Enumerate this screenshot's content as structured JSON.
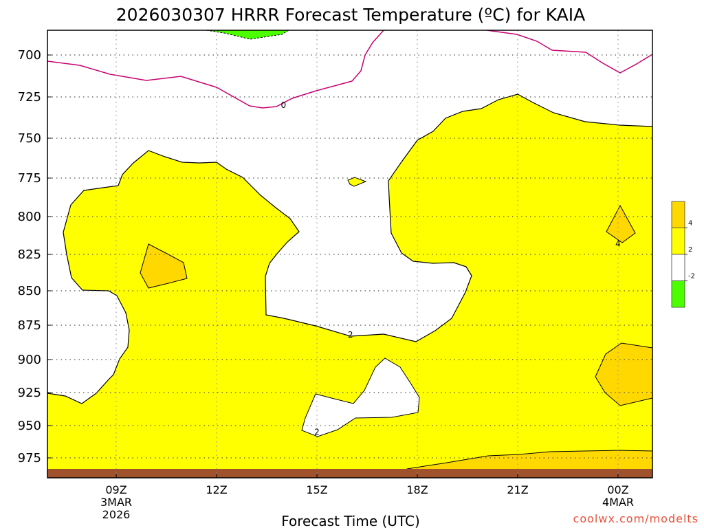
{
  "chart_data": {
    "type": "contour",
    "title": "2026030307 HRRR Forecast Temperature (ºC) for KAIA",
    "xlabel": "Forecast Time (UTC)",
    "ylabel": "",
    "y_scale": "pressure (hPa, inverted)",
    "ylim": [
      985,
      686
    ],
    "y_ticks": [
      700,
      725,
      750,
      775,
      800,
      825,
      850,
      875,
      900,
      925,
      950,
      975
    ],
    "x_ticks": [
      {
        "label": "09Z",
        "sub": [
          "3MAR",
          "2026"
        ],
        "hour": 9
      },
      {
        "label": "12Z",
        "sub": [],
        "hour": 12
      },
      {
        "label": "15Z",
        "sub": [],
        "hour": 15
      },
      {
        "label": "18Z",
        "sub": [],
        "hour": 18
      },
      {
        "label": "21Z",
        "sub": [],
        "hour": 21
      },
      {
        "label": "00Z",
        "sub": [
          "4MAR"
        ],
        "hour": 24
      }
    ],
    "xlim_hours": [
      7,
      25
    ],
    "grid": "dotted",
    "contour_labels": [
      {
        "text": "0",
        "hour": 14.0,
        "p": 730
      },
      {
        "text": "2",
        "hour": 16.0,
        "p": 882
      },
      {
        "text": "2",
        "hour": 15.0,
        "p": 955
      },
      {
        "text": "4",
        "hour": 24.0,
        "p": 818
      }
    ],
    "colorbar": {
      "levels": [
        "4",
        "2",
        "-2"
      ],
      "colors": [
        "#ffd800",
        "#ffff00",
        "#ffffff",
        "#4cff00"
      ]
    },
    "colors": {
      "warm_4_plus": "#ffd800",
      "warm_2_4": "#ffff00",
      "cold_below_minus2": "#4cff00",
      "zero_line": "#c8006e",
      "ground": "#a0522d"
    }
  },
  "credit": "coolwx.com/modelts"
}
